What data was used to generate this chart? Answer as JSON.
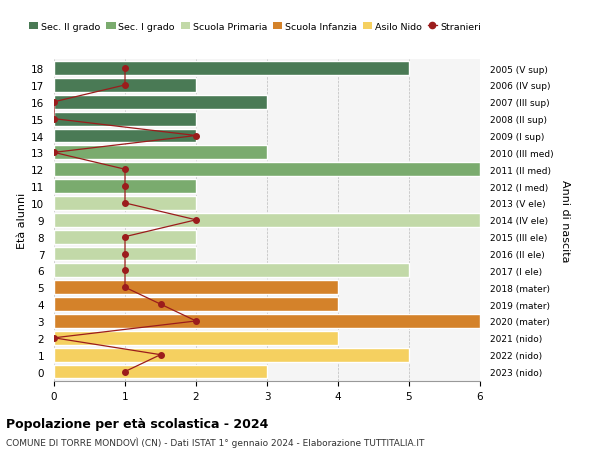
{
  "ages": [
    18,
    17,
    16,
    15,
    14,
    13,
    12,
    11,
    10,
    9,
    8,
    7,
    6,
    5,
    4,
    3,
    2,
    1,
    0
  ],
  "years": [
    "2005 (V sup)",
    "2006 (IV sup)",
    "2007 (III sup)",
    "2008 (II sup)",
    "2009 (I sup)",
    "2010 (III med)",
    "2011 (II med)",
    "2012 (I med)",
    "2013 (V ele)",
    "2014 (IV ele)",
    "2015 (III ele)",
    "2016 (II ele)",
    "2017 (I ele)",
    "2018 (mater)",
    "2019 (mater)",
    "2020 (mater)",
    "2021 (nido)",
    "2022 (nido)",
    "2023 (nido)"
  ],
  "bar_values": [
    5,
    2,
    3,
    2,
    2,
    3,
    6,
    2,
    2,
    6,
    2,
    2,
    5,
    4,
    4,
    6,
    4,
    5,
    3
  ],
  "stranieri": [
    1,
    1,
    0,
    0,
    2,
    0,
    1,
    1,
    1,
    2,
    1,
    1,
    1,
    1,
    1.5,
    2,
    0,
    1.5,
    1
  ],
  "bar_colors": [
    "#4a7a55",
    "#4a7a55",
    "#4a7a55",
    "#4a7a55",
    "#4a7a55",
    "#7aab6e",
    "#7aab6e",
    "#7aab6e",
    "#c2d9a8",
    "#c2d9a8",
    "#c2d9a8",
    "#c2d9a8",
    "#c2d9a8",
    "#d4822a",
    "#d4822a",
    "#d4822a",
    "#f5d060",
    "#f5d060",
    "#f5d060"
  ],
  "legend_labels": [
    "Sec. II grado",
    "Sec. I grado",
    "Scuola Primaria",
    "Scuola Infanzia",
    "Asilo Nido",
    "Stranieri"
  ],
  "legend_colors": [
    "#4a7a55",
    "#7aab6e",
    "#c2d9a8",
    "#d4822a",
    "#f5d060",
    "#9b1c1c"
  ],
  "stranieri_color": "#9b1c1c",
  "title_bold": "Popolazione per età scolastica - 2024",
  "title_sub": "COMUNE DI TORRE MONDOVÌ (CN) - Dati ISTAT 1° gennaio 2024 - Elaborazione TUTTITALIA.IT",
  "ylabel_left": "Età alunni",
  "ylabel_right": "Anni di nascita",
  "xlim": [
    0,
    6
  ],
  "bg_color": "#f5f5f5",
  "grid_color": "#bbbbbb"
}
